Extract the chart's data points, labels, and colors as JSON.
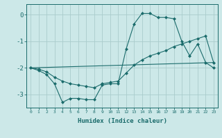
{
  "xlabel": "Humidex (Indice chaleur)",
  "ylabel": "",
  "bg_color": "#cce8e8",
  "line_color": "#1a6b6b",
  "grid_color": "#aacccc",
  "xlim": [
    -0.5,
    23.5
  ],
  "ylim": [
    -3.5,
    0.4
  ],
  "yticks": [
    0,
    -1,
    -2,
    -3
  ],
  "xticks": [
    0,
    1,
    2,
    3,
    4,
    5,
    6,
    7,
    8,
    9,
    10,
    11,
    12,
    13,
    14,
    15,
    16,
    17,
    18,
    19,
    20,
    21,
    22,
    23
  ],
  "line1_x": [
    0,
    1,
    2,
    3,
    4,
    5,
    6,
    7,
    8,
    9,
    10,
    11,
    12,
    13,
    14,
    15,
    16,
    17,
    18,
    19,
    20,
    21,
    22,
    23
  ],
  "line1_y": [
    -2.0,
    -2.1,
    -2.25,
    -2.6,
    -3.3,
    -3.15,
    -3.15,
    -3.2,
    -3.2,
    -2.65,
    -2.6,
    -2.6,
    -1.3,
    -0.35,
    0.05,
    0.05,
    -0.1,
    -0.1,
    -0.15,
    -1.0,
    -1.55,
    -1.1,
    -1.8,
    -2.0
  ],
  "line2_x": [
    0,
    1,
    2,
    3,
    4,
    5,
    6,
    7,
    8,
    9,
    10,
    11,
    12,
    13,
    14,
    15,
    16,
    17,
    18,
    19,
    20,
    21,
    22,
    23
  ],
  "line2_y": [
    -2.0,
    -2.05,
    -2.15,
    -2.35,
    -2.5,
    -2.6,
    -2.65,
    -2.7,
    -2.75,
    -2.6,
    -2.55,
    -2.5,
    -2.2,
    -1.9,
    -1.7,
    -1.55,
    -1.45,
    -1.35,
    -1.2,
    -1.1,
    -1.0,
    -0.9,
    -0.8,
    -1.8
  ],
  "line3_x": [
    0,
    23
  ],
  "line3_y": [
    -2.0,
    -1.8
  ]
}
